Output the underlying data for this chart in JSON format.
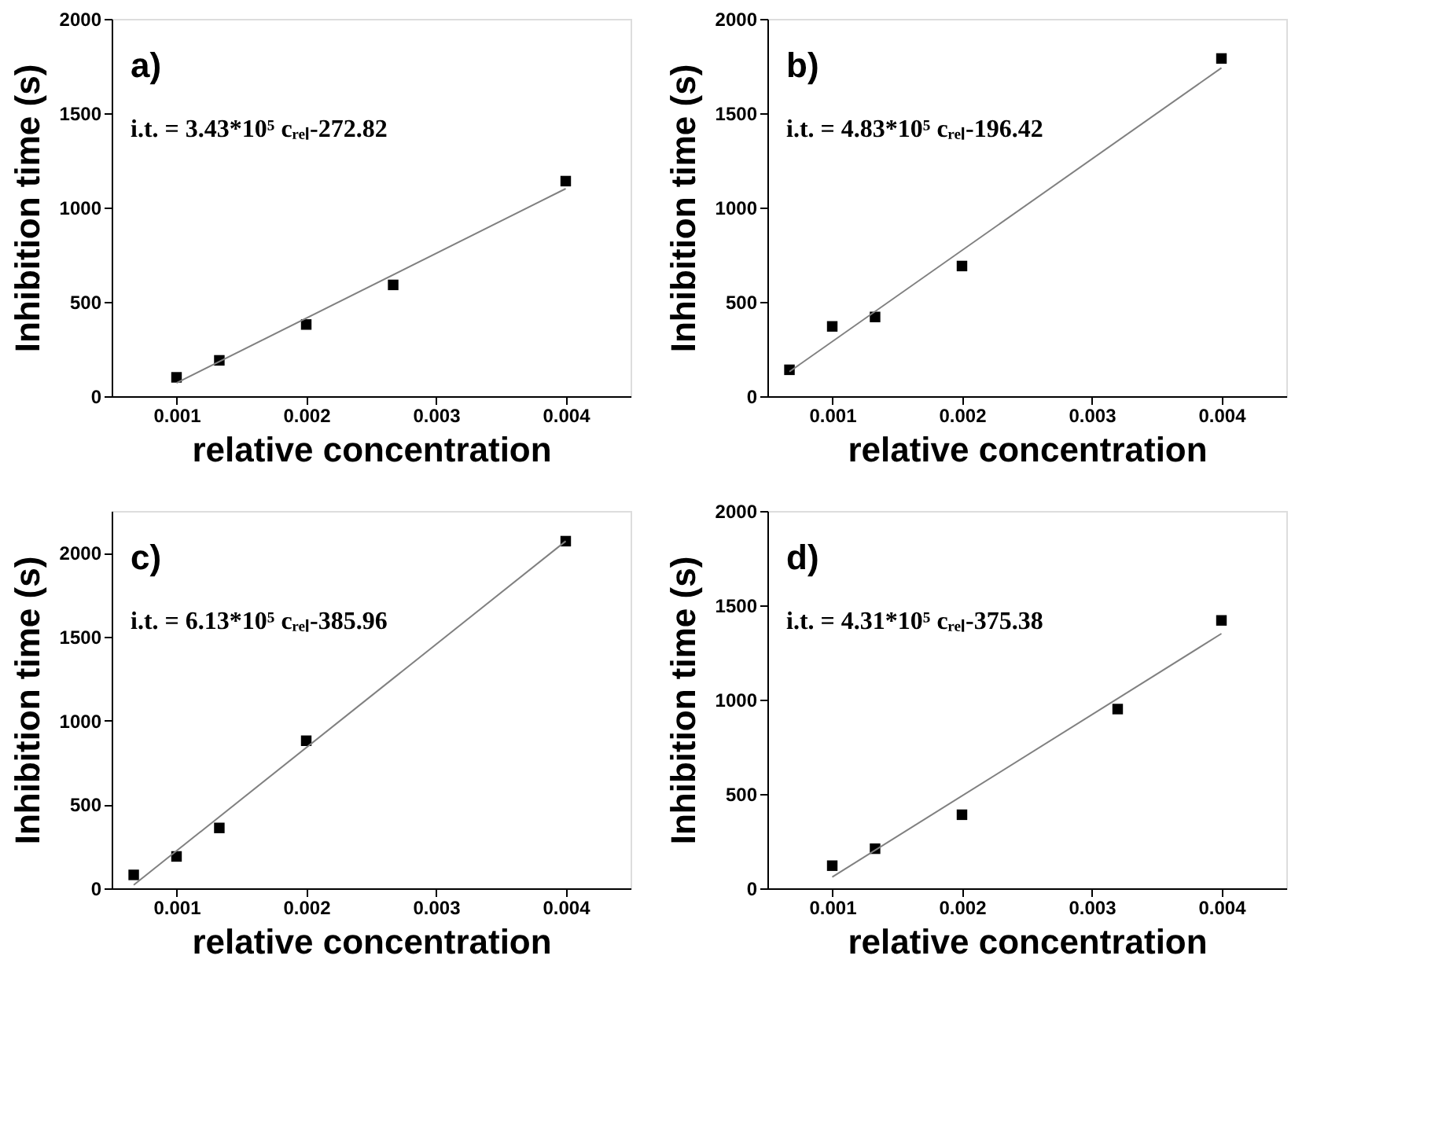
{
  "chart_data": [
    {
      "type": "scatter",
      "xlabel": "relative concentration",
      "ylabel": "Inhibition time (s)",
      "xlim": [
        0.0005,
        0.0045
      ],
      "ylim": [
        0,
        2000
      ],
      "xticks": [
        0.001,
        0.002,
        0.003,
        0.004
      ],
      "yticks": [
        0,
        500,
        1000,
        1500,
        2000
      ],
      "grid": false,
      "annotations": [
        "a)",
        "i.t. = 3.43*10⁵ cᵣₑₗ-272.82"
      ],
      "series": [
        {
          "marker": "square",
          "color": "#000000",
          "x": [
            0.001,
            0.00133,
            0.002,
            0.00267,
            0.004
          ],
          "values": [
            100,
            190,
            380,
            590,
            1140
          ]
        },
        {
          "type": "line",
          "marker": "none",
          "color": "#808080",
          "x": [
            0.001,
            0.004
          ],
          "values": [
            70,
            1100
          ]
        }
      ]
    },
    {
      "type": "scatter",
      "xlabel": "relative concentration",
      "ylabel": "Inhibition time (s)",
      "xlim": [
        0.0005,
        0.0045
      ],
      "ylim": [
        0,
        2000
      ],
      "xticks": [
        0.001,
        0.002,
        0.003,
        0.004
      ],
      "yticks": [
        0,
        500,
        1000,
        1500,
        2000
      ],
      "grid": false,
      "annotations": [
        "b)",
        "i.t. = 4.83*10⁵ cᵣₑₗ-196.42"
      ],
      "series": [
        {
          "marker": "square",
          "color": "#000000",
          "x": [
            0.00067,
            0.001,
            0.00133,
            0.002,
            0.004
          ],
          "values": [
            140,
            370,
            420,
            690,
            1790
          ]
        },
        {
          "type": "line",
          "marker": "none",
          "color": "#808080",
          "x": [
            0.00067,
            0.004
          ],
          "values": [
            130,
            1740
          ]
        }
      ]
    },
    {
      "type": "scatter",
      "xlabel": "relative concentration",
      "ylabel": "Inhibition time (s)",
      "xlim": [
        0.0005,
        0.0045
      ],
      "ylim": [
        0,
        2250
      ],
      "xticks": [
        0.001,
        0.002,
        0.003,
        0.004
      ],
      "yticks": [
        0,
        500,
        1000,
        1500,
        2000
      ],
      "grid": false,
      "annotations": [
        "c)",
        "i.t. = 6.13*10⁵ cᵣₑₗ-385.96"
      ],
      "series": [
        {
          "marker": "square",
          "color": "#000000",
          "x": [
            0.00067,
            0.001,
            0.00133,
            0.002,
            0.004
          ],
          "values": [
            80,
            190,
            360,
            880,
            2070
          ]
        },
        {
          "type": "line",
          "marker": "none",
          "color": "#808080",
          "x": [
            0.00067,
            0.004
          ],
          "values": [
            20,
            2070
          ]
        }
      ]
    },
    {
      "type": "scatter",
      "xlabel": "relative concentration",
      "ylabel": "Inhibition time (s)",
      "xlim": [
        0.0005,
        0.0045
      ],
      "ylim": [
        0,
        2000
      ],
      "xticks": [
        0.001,
        0.002,
        0.003,
        0.004
      ],
      "yticks": [
        0,
        500,
        1000,
        1500,
        2000
      ],
      "grid": false,
      "annotations": [
        "d)",
        "i.t. = 4.31*10⁵ cᵣₑₗ-375.38"
      ],
      "series": [
        {
          "marker": "square",
          "color": "#000000",
          "x": [
            0.001,
            0.00133,
            0.002,
            0.0032,
            0.004
          ],
          "values": [
            120,
            210,
            390,
            950,
            1420
          ]
        },
        {
          "type": "line",
          "marker": "none",
          "color": "#808080",
          "x": [
            0.001,
            0.004
          ],
          "values": [
            60,
            1350
          ]
        }
      ]
    }
  ]
}
